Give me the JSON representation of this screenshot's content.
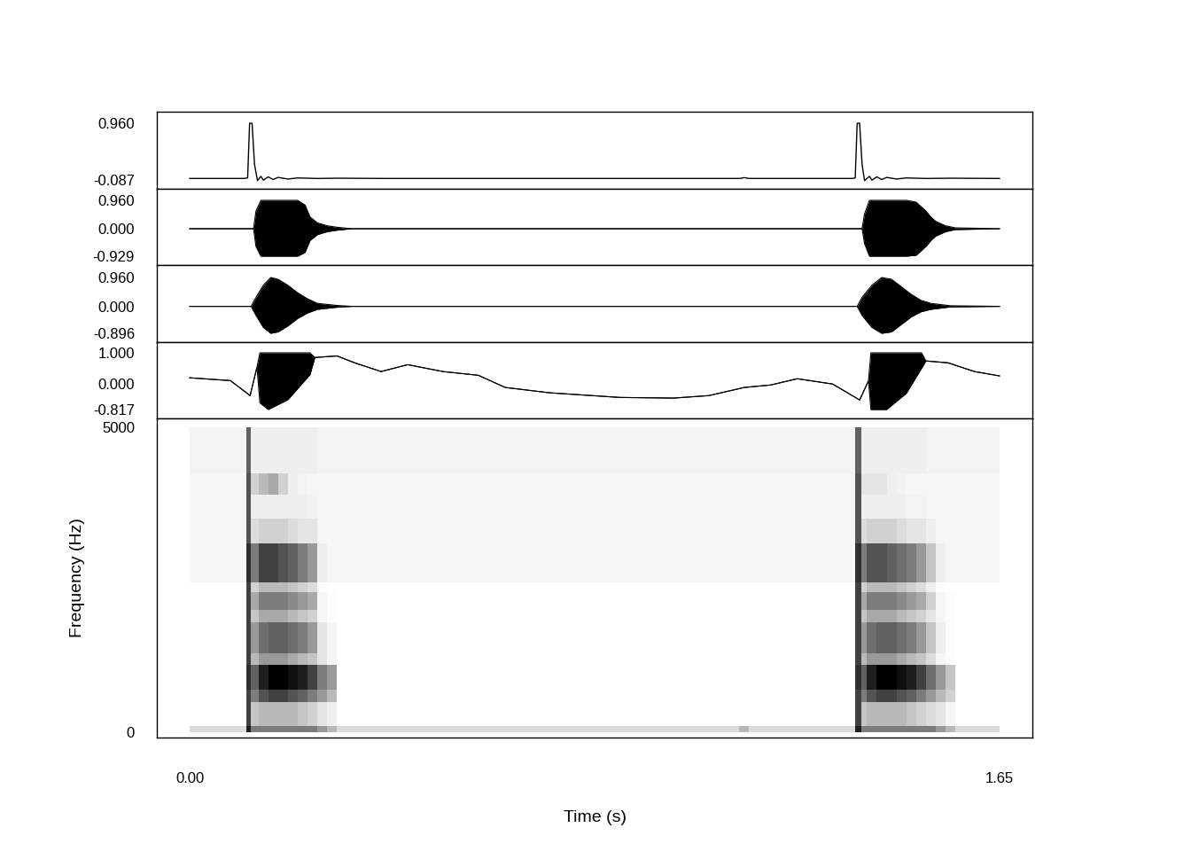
{
  "chart_data": [
    {
      "type": "line",
      "x": [
        0,
        0.11,
        0.118,
        0.122,
        0.127,
        0.132,
        0.138,
        0.145,
        0.15,
        0.16,
        0.17,
        0.18,
        0.2,
        0.22,
        0.26,
        0.3,
        0.4,
        1.12,
        1.13,
        1.14,
        1.35,
        1.356,
        1.36,
        1.365,
        1.37,
        1.375,
        1.385,
        1.39,
        1.4,
        1.41,
        1.42,
        1.44,
        1.46,
        1.5,
        1.55,
        1.65
      ],
      "values": [
        -0.06,
        -0.06,
        -0.05,
        0.96,
        0.96,
        0.2,
        -0.1,
        -0.02,
        -0.09,
        -0.03,
        -0.08,
        -0.04,
        -0.07,
        -0.05,
        -0.06,
        -0.055,
        -0.06,
        -0.06,
        -0.045,
        -0.06,
        -0.06,
        -0.05,
        0.96,
        0.96,
        0.2,
        -0.1,
        -0.02,
        -0.09,
        -0.03,
        -0.08,
        -0.04,
        -0.07,
        -0.05,
        -0.06,
        -0.055,
        -0.06
      ],
      "color": "#000000",
      "xlim": [
        -0.067,
        1.717
      ],
      "ylim": [
        -0.251,
        1.173
      ],
      "yticks": [
        {
          "value": 0.96,
          "label": "0.960"
        },
        {
          "value": -0.087,
          "label": "-0.087"
        }
      ],
      "tick_labels": "y"
    },
    {
      "type": "envelope",
      "x": [
        0,
        0.13,
        0.135,
        0.145,
        0.16,
        0.19,
        0.22,
        0.235,
        0.245,
        0.26,
        0.28,
        0.3,
        0.33,
        1.37,
        1.375,
        1.385,
        1.4,
        1.43,
        1.46,
        1.48,
        1.5,
        1.51,
        1.52,
        1.54,
        1.56,
        1.65
      ],
      "upper": [
        0,
        0,
        0.6,
        0.96,
        0.96,
        0.96,
        0.96,
        0.8,
        0.4,
        0.2,
        0.1,
        0.05,
        0,
        0,
        0.5,
        0.96,
        0.96,
        0.96,
        0.96,
        0.9,
        0.6,
        0.4,
        0.25,
        0.1,
        0.03,
        0
      ],
      "lower": [
        0,
        0,
        -0.6,
        -0.929,
        -0.929,
        -0.929,
        -0.929,
        -0.8,
        -0.4,
        -0.2,
        -0.1,
        -0.05,
        0,
        0,
        -0.5,
        -0.929,
        -0.929,
        -0.929,
        -0.929,
        -0.9,
        -0.6,
        -0.4,
        -0.25,
        -0.1,
        -0.03,
        0
      ],
      "color": "#000000",
      "xlim": [
        -0.067,
        1.717
      ],
      "ylim": [
        -1.229,
        1.35
      ],
      "yticks": [
        {
          "value": 0.96,
          "label": "0.960"
        },
        {
          "value": 0,
          "label": "0.000"
        },
        {
          "value": -0.929,
          "label": "-0.929"
        }
      ],
      "tick_labels": "y"
    },
    {
      "type": "envelope",
      "x": [
        0,
        0.125,
        0.135,
        0.15,
        0.165,
        0.18,
        0.2,
        0.22,
        0.24,
        0.26,
        0.3,
        0.33,
        1.36,
        1.37,
        1.39,
        1.41,
        1.43,
        1.45,
        1.47,
        1.49,
        1.51,
        1.55,
        1.65
      ],
      "upper": [
        0,
        0,
        0.3,
        0.7,
        0.96,
        0.9,
        0.7,
        0.45,
        0.25,
        0.1,
        0.03,
        0,
        0,
        0.3,
        0.7,
        0.96,
        0.9,
        0.65,
        0.4,
        0.2,
        0.1,
        0.02,
        0
      ],
      "lower": [
        0,
        0,
        -0.3,
        -0.7,
        -0.896,
        -0.85,
        -0.65,
        -0.4,
        -0.22,
        -0.1,
        -0.03,
        0,
        0,
        -0.3,
        -0.7,
        -0.896,
        -0.85,
        -0.6,
        -0.35,
        -0.18,
        -0.1,
        -0.02,
        0
      ],
      "color": "#000000",
      "xlim": [
        -0.067,
        1.717
      ],
      "ylim": [
        -1.191,
        1.373
      ],
      "yticks": [
        {
          "value": 0.96,
          "label": "0.960"
        },
        {
          "value": 0,
          "label": "0.000"
        },
        {
          "value": -0.896,
          "label": "-0.896"
        }
      ],
      "tick_labels": "y"
    },
    {
      "type": "envelope",
      "x": [
        0,
        0.083,
        0.123,
        0.137,
        0.143,
        0.16,
        0.2,
        0.245,
        0.255,
        0.3,
        0.336,
        0.39,
        0.444,
        0.516,
        0.588,
        0.643,
        0.733,
        0.877,
        0.986,
        1.058,
        1.13,
        1.184,
        1.238,
        1.31,
        1.365,
        1.383,
        1.388,
        1.42,
        1.46,
        1.491,
        1.5,
        1.545,
        1.599,
        1.65
      ],
      "upper": [
        0.2,
        0.11,
        -0.37,
        0.54,
        1.0,
        1.0,
        1.0,
        1.0,
        0.85,
        0.9,
        0.68,
        0.4,
        0.62,
        0.4,
        0.28,
        -0.11,
        -0.28,
        -0.43,
        -0.45,
        -0.37,
        -0.11,
        -0.03,
        0.17,
        0,
        -0.51,
        0.1,
        1.0,
        1.0,
        1.0,
        1.0,
        0.74,
        0.68,
        0.4,
        0.26
      ],
      "lower": [
        0.2,
        0.11,
        -0.37,
        0.54,
        -0.6,
        -0.817,
        -0.5,
        0.3,
        0.85,
        0.9,
        0.68,
        0.4,
        0.62,
        0.4,
        0.28,
        -0.11,
        -0.28,
        -0.43,
        -0.45,
        -0.37,
        -0.11,
        -0.03,
        0.17,
        0,
        -0.51,
        0.1,
        -0.817,
        -0.817,
        -0.3,
        0.5,
        0.74,
        0.68,
        0.4,
        0.26
      ],
      "color": "#000000",
      "xlim": [
        -0.067,
        1.717
      ],
      "ylim": [
        -1.101,
        1.341
      ],
      "yticks": [
        {
          "value": 1.0,
          "label": "1.000"
        },
        {
          "value": 0,
          "label": "0.000"
        },
        {
          "value": -0.817,
          "label": "-0.817"
        }
      ],
      "tick_labels": "y"
    },
    {
      "type": "heatmap",
      "x_edges": [
        0.0,
        0.115,
        0.125,
        0.14,
        0.16,
        0.18,
        0.2,
        0.22,
        0.24,
        0.26,
        0.28,
        0.3,
        1.12,
        1.14,
        1.355,
        1.368,
        1.38,
        1.4,
        1.42,
        1.44,
        1.46,
        1.48,
        1.5,
        1.52,
        1.54,
        1.56,
        1.65
      ],
      "y_edges": [
        0,
        100,
        500,
        700,
        1100,
        1300,
        1800,
        2000,
        2300,
        2450,
        3100,
        3500,
        3900,
        4250,
        5000
      ],
      "cells": [
        [
          0.25,
          0.9,
          0.6,
          0.6,
          0.6,
          0.6,
          0.6,
          0.6,
          0.6,
          0.5,
          0.4,
          0.25,
          0.4,
          0.25,
          0.9,
          0.6,
          0.6,
          0.6,
          0.6,
          0.6,
          0.6,
          0.6,
          0.6,
          0.5,
          0.4,
          0.25
        ],
        [
          0.02,
          0.8,
          0.35,
          0.4,
          0.4,
          0.4,
          0.4,
          0.35,
          0.3,
          0.2,
          0.15,
          0.02,
          0.02,
          0.02,
          0.8,
          0.35,
          0.4,
          0.4,
          0.4,
          0.4,
          0.35,
          0.3,
          0.25,
          0.2,
          0.1,
          0.02
        ],
        [
          0.02,
          0.8,
          0.6,
          0.75,
          0.8,
          0.8,
          0.75,
          0.7,
          0.6,
          0.5,
          0.4,
          0.02,
          0.02,
          0.02,
          0.8,
          0.6,
          0.75,
          0.8,
          0.8,
          0.75,
          0.7,
          0.6,
          0.5,
          0.4,
          0.3,
          0.02
        ],
        [
          0.02,
          0.85,
          0.7,
          0.9,
          1.0,
          1.0,
          0.95,
          0.9,
          0.8,
          0.6,
          0.5,
          0.02,
          0.02,
          0.02,
          0.85,
          0.7,
          0.9,
          1.0,
          1.0,
          0.95,
          0.9,
          0.8,
          0.65,
          0.5,
          0.35,
          0.02
        ],
        [
          0.02,
          0.8,
          0.4,
          0.5,
          0.5,
          0.5,
          0.45,
          0.4,
          0.35,
          0.2,
          0.1,
          0.02,
          0.02,
          0.02,
          0.8,
          0.4,
          0.5,
          0.5,
          0.5,
          0.45,
          0.4,
          0.35,
          0.25,
          0.1,
          0.05,
          0.02
        ],
        [
          0.02,
          0.8,
          0.5,
          0.65,
          0.7,
          0.7,
          0.65,
          0.6,
          0.5,
          0.2,
          0.1,
          0.02,
          0.02,
          0.02,
          0.8,
          0.5,
          0.65,
          0.7,
          0.7,
          0.65,
          0.6,
          0.5,
          0.35,
          0.15,
          0.05,
          0.02
        ],
        [
          0.02,
          0.8,
          0.35,
          0.45,
          0.45,
          0.45,
          0.4,
          0.35,
          0.3,
          0.1,
          0.05,
          0.02,
          0.02,
          0.02,
          0.8,
          0.35,
          0.45,
          0.45,
          0.45,
          0.4,
          0.35,
          0.3,
          0.2,
          0.1,
          0.05,
          0.02
        ],
        [
          0.02,
          0.8,
          0.45,
          0.6,
          0.6,
          0.6,
          0.55,
          0.5,
          0.45,
          0.1,
          0.05,
          0.02,
          0.02,
          0.02,
          0.8,
          0.45,
          0.6,
          0.6,
          0.6,
          0.55,
          0.5,
          0.45,
          0.3,
          0.1,
          0.05,
          0.02
        ],
        [
          0.02,
          0.8,
          0.3,
          0.4,
          0.4,
          0.4,
          0.35,
          0.3,
          0.25,
          0.05,
          0.02,
          0.02,
          0.02,
          0.02,
          0.8,
          0.3,
          0.4,
          0.4,
          0.4,
          0.35,
          0.3,
          0.25,
          0.15,
          0.05,
          0.02,
          0.02
        ],
        [
          0.1,
          0.85,
          0.6,
          0.8,
          0.8,
          0.75,
          0.7,
          0.6,
          0.5,
          0.15,
          0.1,
          0.1,
          0.1,
          0.1,
          0.85,
          0.6,
          0.75,
          0.75,
          0.7,
          0.65,
          0.6,
          0.5,
          0.35,
          0.15,
          0.1,
          0.1
        ],
        [
          0.1,
          0.75,
          0.25,
          0.3,
          0.3,
          0.3,
          0.25,
          0.2,
          0.2,
          0.1,
          0.1,
          0.1,
          0.1,
          0.1,
          0.75,
          0.25,
          0.3,
          0.3,
          0.3,
          0.25,
          0.2,
          0.2,
          0.15,
          0.1,
          0.1,
          0.1
        ],
        [
          0.1,
          0.75,
          0.15,
          0.15,
          0.15,
          0.15,
          0.15,
          0.15,
          0.12,
          0.1,
          0.1,
          0.1,
          0.1,
          0.1,
          0.75,
          0.15,
          0.15,
          0.15,
          0.15,
          0.15,
          0.12,
          0.12,
          0.1,
          0.1,
          0.1,
          0.1
        ],
        [
          0.1,
          0.75,
          0.3,
          0.4,
          0.45,
          0.3,
          0.15,
          0.12,
          0.1,
          0.1,
          0.1,
          0.1,
          0.1,
          0.1,
          0.75,
          0.2,
          0.2,
          0.2,
          0.15,
          0.12,
          0.1,
          0.1,
          0.1,
          0.1,
          0.1,
          0.1
        ],
        [
          0.12,
          0.7,
          0.15,
          0.15,
          0.15,
          0.15,
          0.15,
          0.15,
          0.15,
          0.12,
          0.12,
          0.12,
          0.12,
          0.12,
          0.7,
          0.15,
          0.15,
          0.15,
          0.15,
          0.15,
          0.15,
          0.15,
          0.12,
          0.12,
          0.12,
          0.12
        ]
      ],
      "xlim": [
        -0.067,
        1.717
      ],
      "ylim": [
        -87,
        5145
      ],
      "xticks": [
        {
          "value": 0,
          "label": "0.00"
        },
        {
          "value": 1.65,
          "label": "1.65"
        }
      ],
      "yticks": [
        5000,
        0
      ],
      "xlabel": "Time (s)",
      "ylabel": "Frequency (Hz)",
      "tick_labels": true
    }
  ]
}
